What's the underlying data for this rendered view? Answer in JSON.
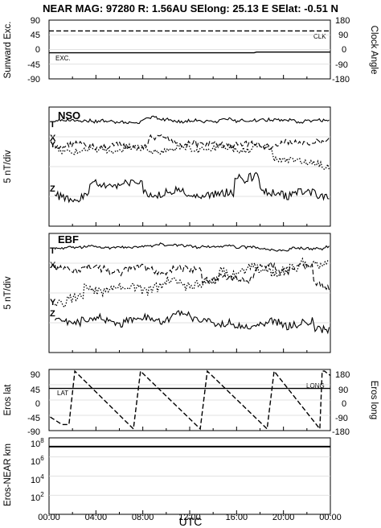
{
  "header": {
    "title": "NEAR MAG: 97280  R: 1.56AU  SElong:   25.13 E  SElat:   -0.51 N"
  },
  "chart_data": [
    {
      "type": "line",
      "panel": "sunward-clock",
      "ylabel_left": "Sunward Exc.",
      "ylabel_right": "Clock Angle",
      "left_ticks": [
        "90",
        "45",
        "0",
        "-45",
        "-90"
      ],
      "right_ticks": [
        "180",
        "90",
        "0",
        "-90",
        "-180"
      ],
      "ylim": [
        -90,
        90
      ],
      "series": [
        {
          "name": "CLK",
          "style": "dashed",
          "x": [
            0,
            24
          ],
          "y": [
            57,
            57
          ]
        },
        {
          "name": "EXC.",
          "style": "solid",
          "x": [
            0,
            17.5,
            17.7,
            24
          ],
          "y": [
            -10,
            -10,
            -8,
            -8
          ]
        }
      ]
    },
    {
      "type": "line",
      "panel": "NSO",
      "label": "NSO",
      "ylabel": "5 nT/div",
      "series": [
        {
          "name": "T",
          "style": "solid",
          "base": 0.12,
          "amp": 0.025,
          "seed": 3,
          "steps": []
        },
        {
          "name": "X",
          "style": "dashed",
          "base": 0.33,
          "amp": 0.05,
          "seed": 7,
          "steps": [
            [
              8.5,
              -0.05
            ],
            [
              12.5,
              0.04
            ],
            [
              22.8,
              -0.03
            ]
          ]
        },
        {
          "name": "Y",
          "style": "dotted",
          "base": 0.36,
          "amp": 0.05,
          "seed": 11,
          "steps": [
            [
              19,
              0.08
            ],
            [
              21.5,
              0.05
            ]
          ]
        },
        {
          "name": "Z",
          "style": "solid",
          "base": 0.74,
          "amp": 0.07,
          "seed": 5,
          "steps": [
            [
              3.5,
              -0.1
            ],
            [
              8,
              0.08
            ],
            [
              15.8,
              -0.15
            ],
            [
              18,
              0.15
            ]
          ]
        }
      ]
    },
    {
      "type": "line",
      "panel": "EBF",
      "label": "EBF",
      "ylabel": "5 nT/div",
      "series": [
        {
          "name": "T",
          "style": "solid",
          "base": 0.12,
          "amp": 0.02,
          "seed": 13,
          "steps": []
        },
        {
          "name": "X",
          "style": "dashed",
          "base": 0.3,
          "amp": 0.06,
          "seed": 17,
          "steps": [
            [
              13,
              0.08
            ],
            [
              17.5,
              -0.08
            ],
            [
              22.5,
              0.15
            ]
          ]
        },
        {
          "name": "Y",
          "style": "dotted",
          "base": 0.56,
          "amp": 0.08,
          "seed": 19,
          "steps": [
            [
              3,
              -0.1
            ],
            [
              10,
              -0.05
            ],
            [
              14.5,
              -0.1
            ],
            [
              21.5,
              -0.05
            ]
          ]
        },
        {
          "name": "Z",
          "style": "solid",
          "base": 0.72,
          "amp": 0.07,
          "seed": 23,
          "steps": [
            [
              14,
              0.05
            ],
            [
              22.5,
              0.05
            ]
          ]
        }
      ]
    },
    {
      "type": "line",
      "panel": "eros-lat-long",
      "ylabel_left": "Eros lat",
      "ylabel_right": "Eros long",
      "left_ticks": [
        "90",
        "45",
        "0",
        "-45",
        "-90"
      ],
      "right_ticks": [
        "180",
        "90",
        "0",
        "-90",
        "-180"
      ],
      "ylim": [
        -90,
        90
      ],
      "series": [
        {
          "name": "LAT",
          "style": "solid",
          "x": [
            0,
            24
          ],
          "y": [
            34,
            34
          ]
        },
        {
          "name": "LONG",
          "style": "dashed",
          "x": [
            0.1,
            1.1,
            1.7,
            2.2,
            7.2,
            7.8,
            12.9,
            13.5,
            18.6,
            19.2,
            23.1,
            23.3,
            23.5,
            24
          ],
          "y": [
            -50,
            -72,
            -72,
            85,
            -85,
            85,
            -85,
            85,
            -85,
            85,
            -85,
            85,
            85,
            72
          ]
        }
      ]
    },
    {
      "type": "line",
      "panel": "eros-near-distance",
      "ylabel": "Eros-NEAR km",
      "yscale": "log",
      "tick_labels": [
        "10^8",
        "10^6",
        "10^4",
        "10^2"
      ],
      "ylim": [
        1,
        100000000.0
      ],
      "series": [
        {
          "name": "",
          "style": "solid",
          "x": [
            0,
            24
          ],
          "y": [
            110000000.0,
            110000000.0
          ]
        }
      ]
    }
  ],
  "x_axis": {
    "label": "UTC",
    "tick_labels": [
      "00:00",
      "04:00",
      "08:00",
      "12:00",
      "16:00",
      "20:00",
      "00:00"
    ],
    "xlim_hours": [
      0,
      24
    ]
  }
}
